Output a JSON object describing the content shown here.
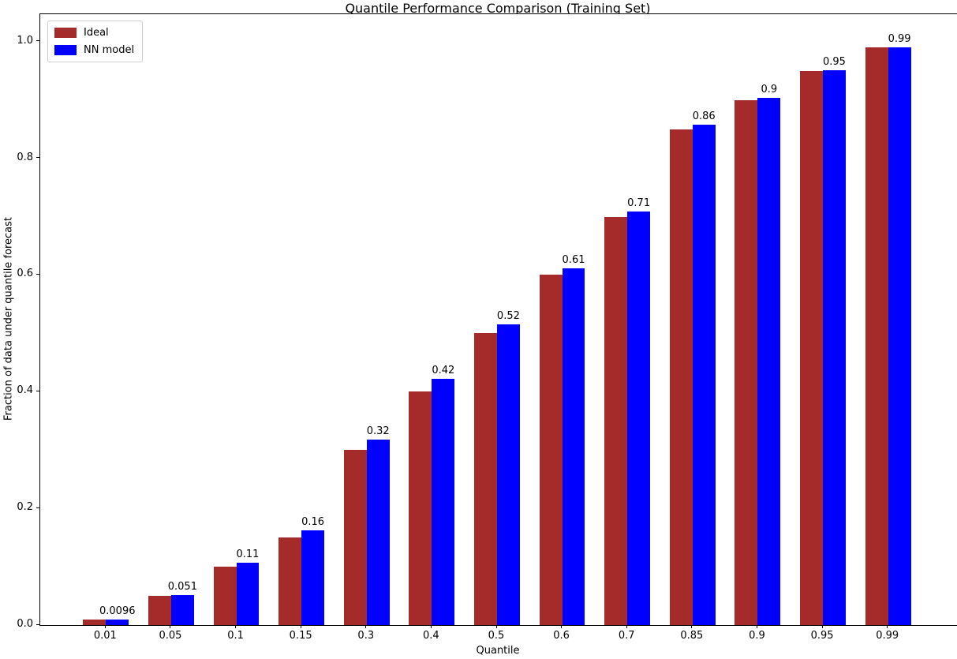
{
  "chart_data": {
    "type": "bar",
    "title": "Quantile Performance Comparison (Training Set)",
    "xlabel": "Quantile",
    "ylabel": "Fraction of data under quantile forecast",
    "categories": [
      "0.01",
      "0.05",
      "0.1",
      "0.15",
      "0.3",
      "0.4",
      "0.5",
      "0.6",
      "0.7",
      "0.85",
      "0.9",
      "0.95",
      "0.99"
    ],
    "series": [
      {
        "name": "Ideal",
        "color": "#A52A2A",
        "values": [
          0.01,
          0.05,
          0.1,
          0.15,
          0.3,
          0.4,
          0.5,
          0.6,
          0.7,
          0.85,
          0.9,
          0.95,
          0.99
        ]
      },
      {
        "name": "NN model",
        "color": "#0000FF",
        "values": [
          0.0096,
          0.051,
          0.107,
          0.163,
          0.318,
          0.422,
          0.516,
          0.611,
          0.709,
          0.857,
          0.903,
          0.951,
          0.99
        ],
        "bar_labels": [
          "0.0096",
          "0.051",
          "0.11",
          "0.16",
          "0.32",
          "0.42",
          "0.52",
          "0.61",
          "0.71",
          "0.86",
          "0.9",
          "0.95",
          "0.99"
        ]
      }
    ],
    "ytick_labels": [
      "0.0",
      "0.2",
      "0.4",
      "0.6",
      "0.8",
      "1.0"
    ],
    "ytick_values": [
      0.0,
      0.2,
      0.4,
      0.6,
      0.8,
      1.0
    ],
    "ylim": [
      0,
      1.047
    ],
    "legend_position": "upper left",
    "grid": false,
    "background_color": "#ffffff"
  }
}
